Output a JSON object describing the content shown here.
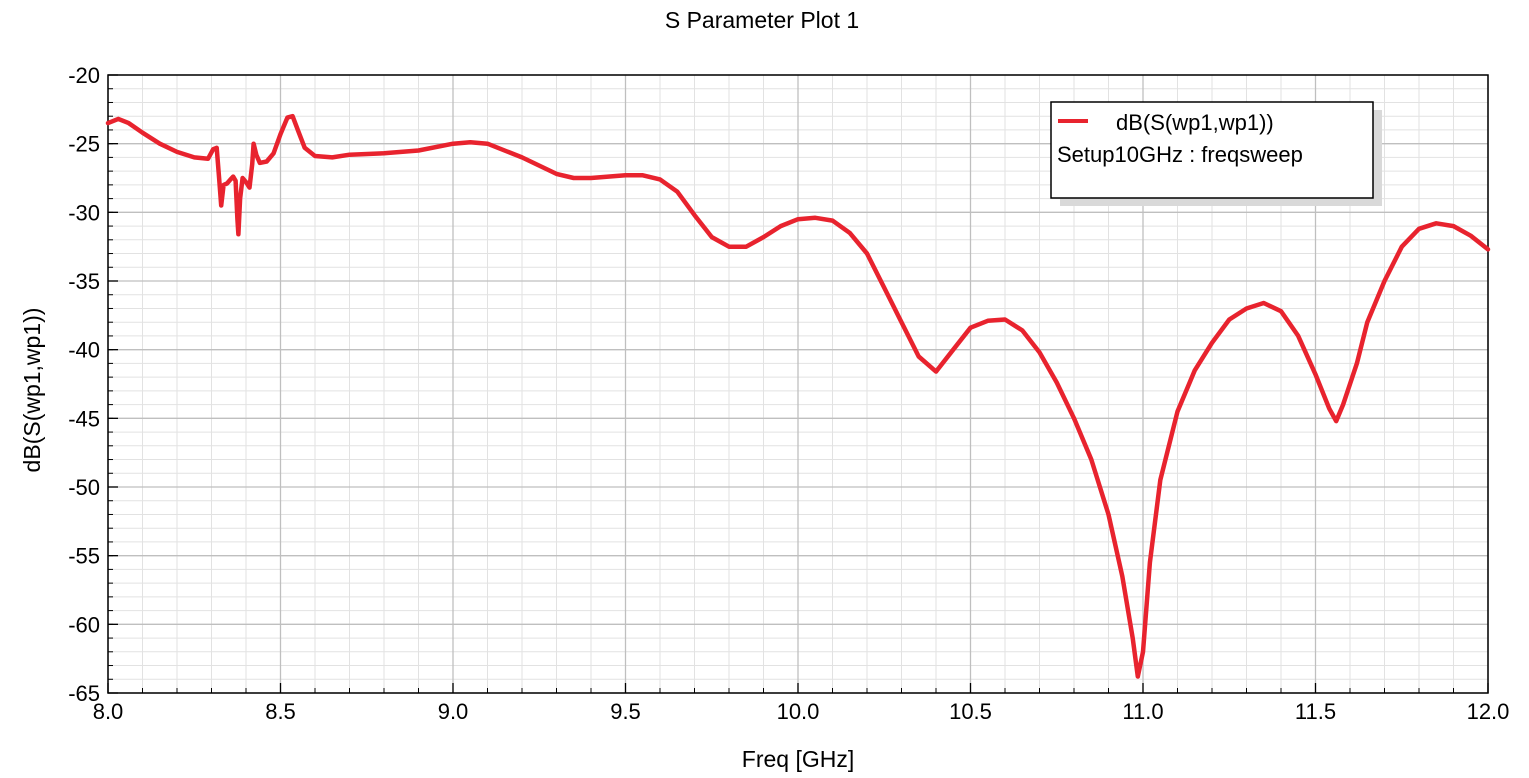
{
  "chart_data": {
    "type": "line",
    "title": "S Parameter Plot 1",
    "xlabel": "Freq [GHz]",
    "ylabel": "dB(S(wp1,wp1))",
    "xlim": [
      8.0,
      12.0
    ],
    "ylim": [
      -65,
      -20
    ],
    "x_ticks": [
      8.0,
      8.5,
      9.0,
      9.5,
      10.0,
      10.5,
      11.0,
      11.5,
      12.0
    ],
    "x_tick_labels": [
      "8.0",
      "8.5",
      "9.0",
      "9.5",
      "10.0",
      "10.5",
      "11.0",
      "11.5",
      "12.0"
    ],
    "y_ticks": [
      -20,
      -25,
      -30,
      -35,
      -40,
      -45,
      -50,
      -55,
      -60,
      -65
    ],
    "y_tick_labels": [
      "-20",
      "-25",
      "-30",
      "-35",
      "-40",
      "-45",
      "-50",
      "-55",
      "-60",
      "-65"
    ],
    "grid": true,
    "legend_position": "top-right",
    "legend": {
      "series_label": "dB(S(wp1,wp1))",
      "subtitle": "Setup10GHz : freqsweep"
    },
    "series": [
      {
        "name": "dB(S(wp1,wp1))",
        "color": "#e8232e",
        "points": [
          [
            8.0,
            -23.5
          ],
          [
            8.03,
            -23.2
          ],
          [
            8.06,
            -23.5
          ],
          [
            8.1,
            -24.2
          ],
          [
            8.15,
            -25.0
          ],
          [
            8.2,
            -25.6
          ],
          [
            8.25,
            -26.0
          ],
          [
            8.29,
            -26.1
          ],
          [
            8.305,
            -25.4
          ],
          [
            8.315,
            -25.3
          ],
          [
            8.322,
            -27.5
          ],
          [
            8.328,
            -29.5
          ],
          [
            8.335,
            -28.0
          ],
          [
            8.345,
            -27.9
          ],
          [
            8.355,
            -27.6
          ],
          [
            8.363,
            -27.4
          ],
          [
            8.37,
            -27.7
          ],
          [
            8.375,
            -30.5
          ],
          [
            8.378,
            -31.6
          ],
          [
            8.383,
            -29.0
          ],
          [
            8.39,
            -27.5
          ],
          [
            8.4,
            -27.8
          ],
          [
            8.41,
            -28.2
          ],
          [
            8.418,
            -26.5
          ],
          [
            8.422,
            -25.0
          ],
          [
            8.43,
            -25.8
          ],
          [
            8.44,
            -26.4
          ],
          [
            8.46,
            -26.3
          ],
          [
            8.48,
            -25.7
          ],
          [
            8.5,
            -24.3
          ],
          [
            8.52,
            -23.1
          ],
          [
            8.535,
            -23.0
          ],
          [
            8.55,
            -24.0
          ],
          [
            8.57,
            -25.3
          ],
          [
            8.6,
            -25.9
          ],
          [
            8.65,
            -26.0
          ],
          [
            8.7,
            -25.8
          ],
          [
            8.8,
            -25.7
          ],
          [
            8.9,
            -25.5
          ],
          [
            9.0,
            -25.0
          ],
          [
            9.05,
            -24.9
          ],
          [
            9.1,
            -25.0
          ],
          [
            9.2,
            -26.0
          ],
          [
            9.3,
            -27.2
          ],
          [
            9.35,
            -27.5
          ],
          [
            9.4,
            -27.5
          ],
          [
            9.5,
            -27.3
          ],
          [
            9.55,
            -27.3
          ],
          [
            9.6,
            -27.6
          ],
          [
            9.65,
            -28.5
          ],
          [
            9.7,
            -30.2
          ],
          [
            9.75,
            -31.8
          ],
          [
            9.8,
            -32.5
          ],
          [
            9.85,
            -32.5
          ],
          [
            9.9,
            -31.8
          ],
          [
            9.95,
            -31.0
          ],
          [
            10.0,
            -30.5
          ],
          [
            10.05,
            -30.4
          ],
          [
            10.1,
            -30.6
          ],
          [
            10.15,
            -31.5
          ],
          [
            10.2,
            -33.0
          ],
          [
            10.25,
            -35.5
          ],
          [
            10.3,
            -38.0
          ],
          [
            10.35,
            -40.5
          ],
          [
            10.4,
            -41.6
          ],
          [
            10.45,
            -40.0
          ],
          [
            10.5,
            -38.4
          ],
          [
            10.55,
            -37.9
          ],
          [
            10.6,
            -37.8
          ],
          [
            10.65,
            -38.6
          ],
          [
            10.7,
            -40.2
          ],
          [
            10.75,
            -42.4
          ],
          [
            10.8,
            -45.0
          ],
          [
            10.85,
            -48.0
          ],
          [
            10.9,
            -52.0
          ],
          [
            10.94,
            -56.5
          ],
          [
            10.97,
            -61.0
          ],
          [
            10.985,
            -63.8
          ],
          [
            11.0,
            -62.0
          ],
          [
            11.02,
            -55.5
          ],
          [
            11.05,
            -49.5
          ],
          [
            11.1,
            -44.5
          ],
          [
            11.15,
            -41.5
          ],
          [
            11.2,
            -39.5
          ],
          [
            11.25,
            -37.8
          ],
          [
            11.3,
            -37.0
          ],
          [
            11.35,
            -36.6
          ],
          [
            11.4,
            -37.2
          ],
          [
            11.45,
            -39.0
          ],
          [
            11.5,
            -41.8
          ],
          [
            11.54,
            -44.3
          ],
          [
            11.56,
            -45.2
          ],
          [
            11.58,
            -44.0
          ],
          [
            11.62,
            -41.0
          ],
          [
            11.65,
            -38.0
          ],
          [
            11.7,
            -35.0
          ],
          [
            11.75,
            -32.5
          ],
          [
            11.8,
            -31.2
          ],
          [
            11.85,
            -30.8
          ],
          [
            11.9,
            -31.0
          ],
          [
            11.95,
            -31.7
          ],
          [
            12.0,
            -32.7
          ]
        ]
      }
    ]
  }
}
